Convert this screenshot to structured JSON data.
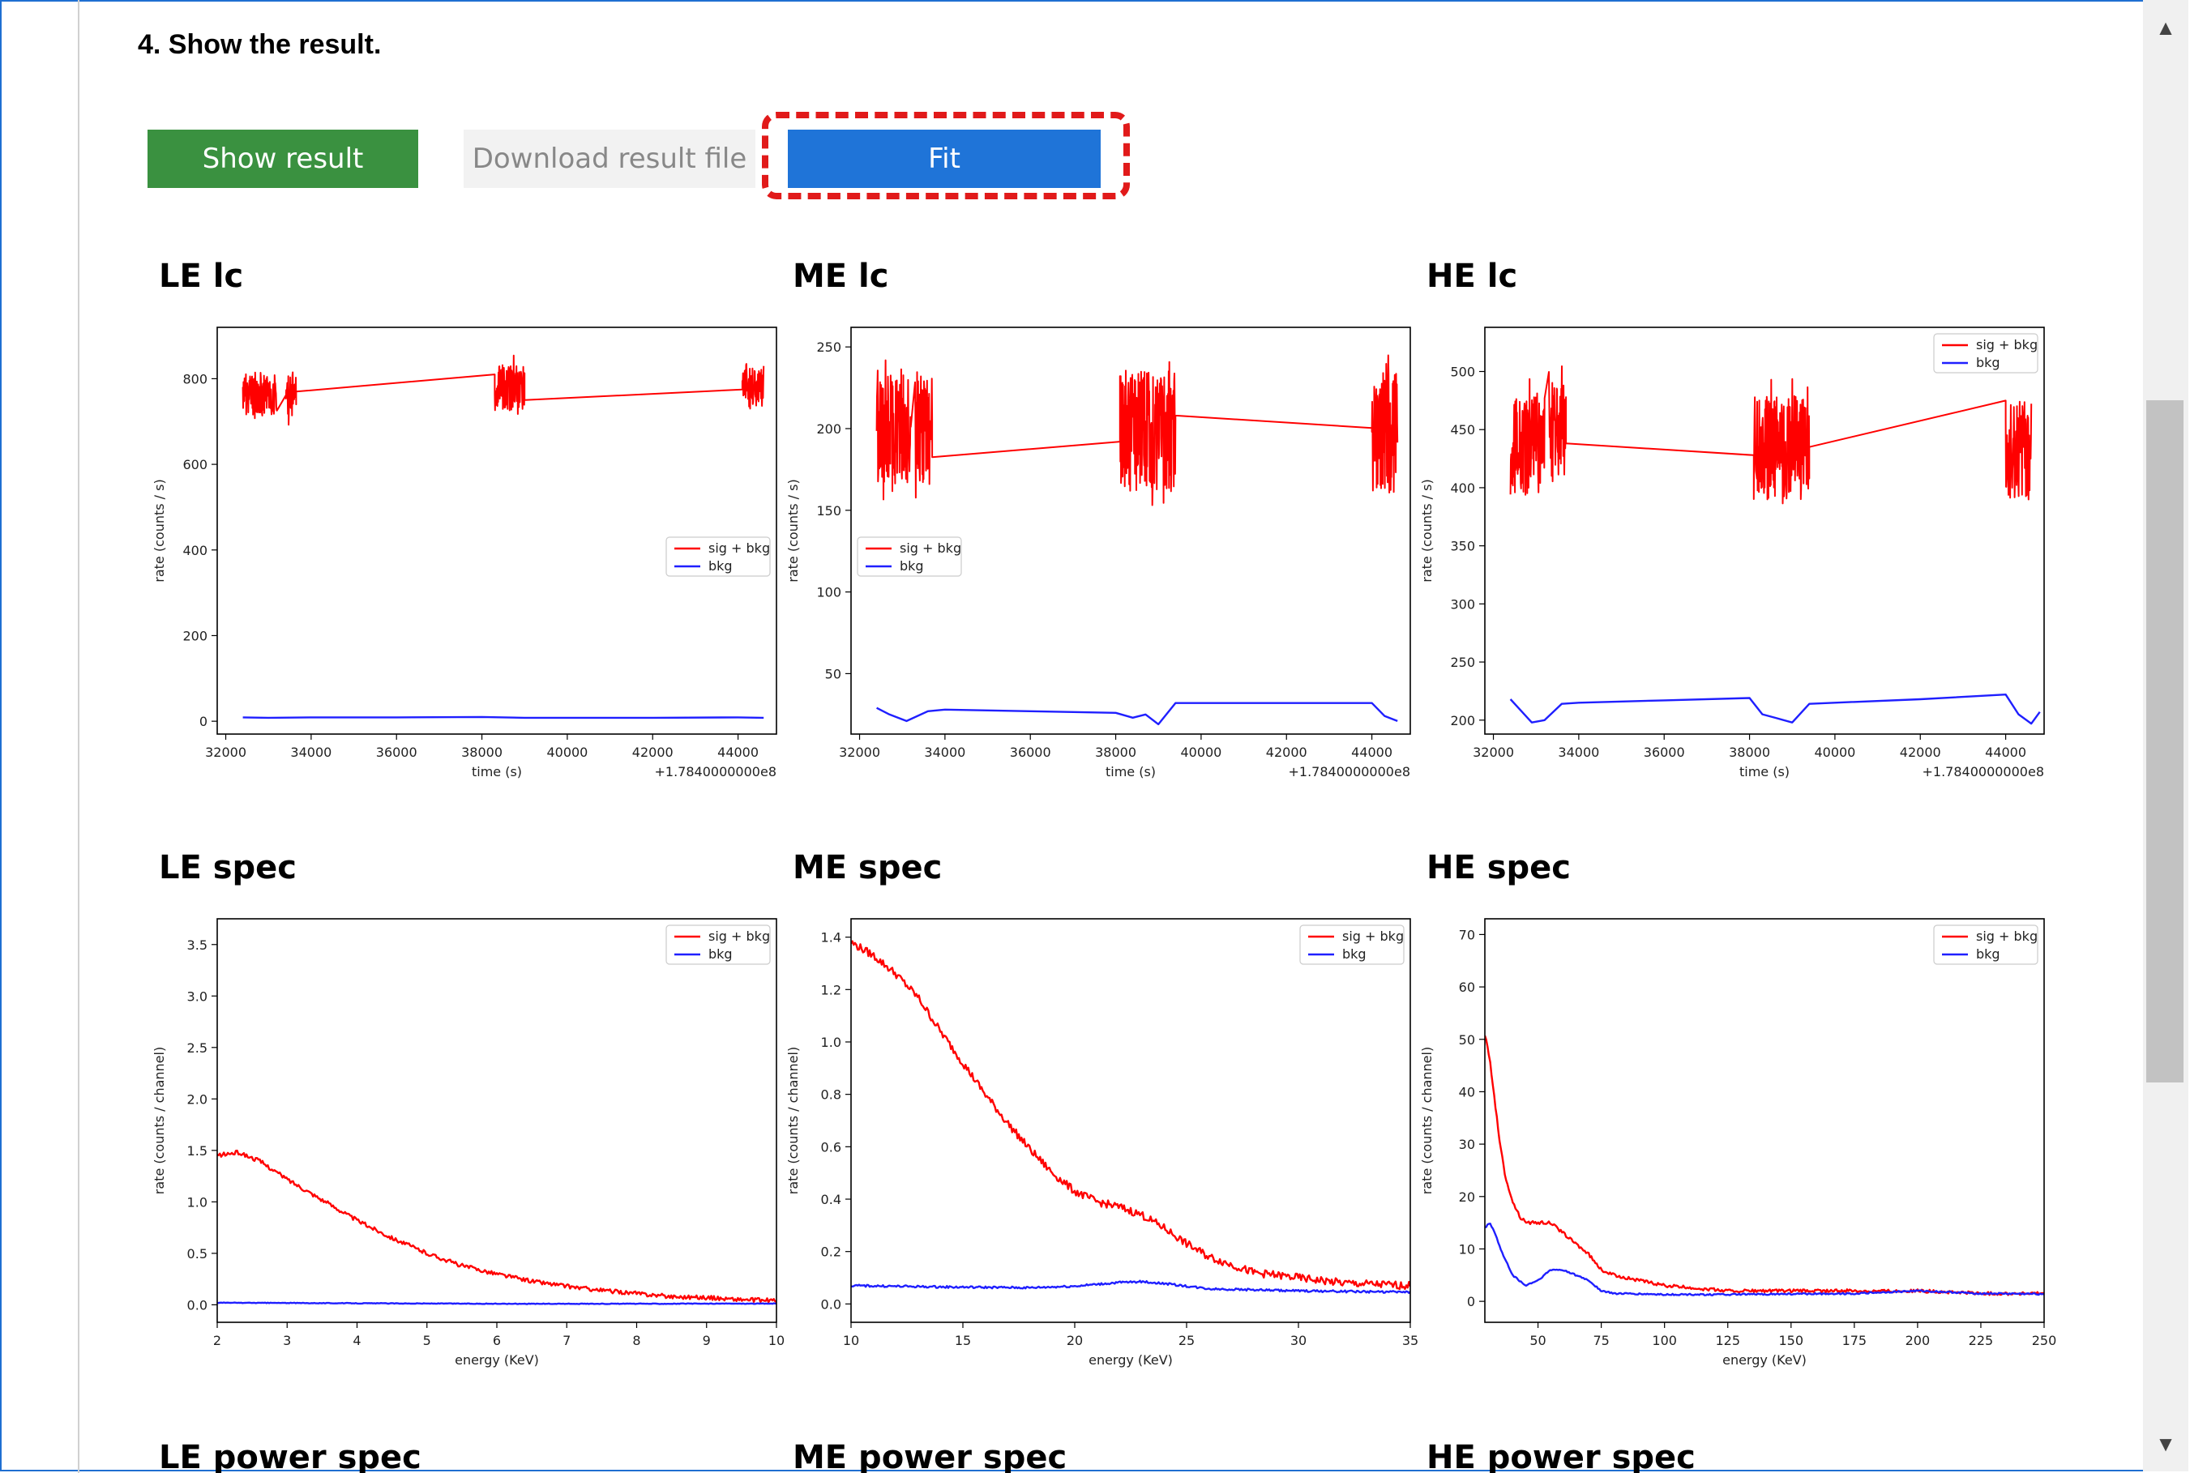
{
  "step": {
    "title": "4. Show the result."
  },
  "buttons": {
    "show_result": "Show result",
    "download": "Download result file",
    "fit": "Fit"
  },
  "colors": {
    "sig": "#ff0000",
    "bkg": "#1f1fff",
    "show_btn": "#3a9140",
    "fit_btn": "#1f74d8",
    "highlight": "#e11a1a"
  },
  "charts": [
    {
      "title": "LE lc",
      "chart_data": {
        "type": "line",
        "xlabel": "time (s)",
        "ylabel": "rate (counts / s)",
        "offset": "+1.7840000000e8",
        "xlim": [
          31800,
          44900
        ],
        "ylim": [
          -30,
          920
        ],
        "xticks": [
          32000,
          34000,
          36000,
          38000,
          40000,
          42000,
          44000
        ],
        "yticks": [
          0,
          200,
          400,
          600,
          800
        ],
        "legend_loc": "center-right",
        "series": [
          {
            "name": "sig + bkg",
            "color": "#ff0000",
            "kind": "lc",
            "clusters": [
              [
                32400,
                33200,
                690,
                840
              ],
              [
                33400,
                33650,
                690,
                830
              ],
              [
                38300,
                39000,
                700,
                860
              ],
              [
                44100,
                44600,
                700,
                860
              ]
            ],
            "links": [
              [
                33650,
                740
              ],
              [
                38300,
                810
              ],
              [
                39000,
                750
              ],
              [
                44100,
                795
              ]
            ]
          },
          {
            "name": "bkg",
            "color": "#1f1fff",
            "kind": "line",
            "x": [
              32400,
              33000,
              34000,
              36000,
              38000,
              39000,
              40000,
              42000,
              44000,
              44600
            ],
            "y": [
              9,
              8,
              9,
              9,
              10,
              8,
              8,
              8,
              9,
              8
            ]
          }
        ]
      }
    },
    {
      "title": "ME lc",
      "chart_data": {
        "type": "line",
        "xlabel": "time (s)",
        "ylabel": "rate (counts / s)",
        "offset": "+1.7840000000e8",
        "xlim": [
          31800,
          44900
        ],
        "ylim": [
          13,
          262
        ],
        "xticks": [
          32000,
          34000,
          36000,
          38000,
          40000,
          42000,
          44000
        ],
        "yticks": [
          50,
          100,
          150,
          200,
          250
        ],
        "legend_loc": "center-left",
        "series": [
          {
            "name": "sig + bkg",
            "color": "#ff0000",
            "kind": "lc",
            "clusters": [
              [
                32400,
                33200,
                150,
                252
              ],
              [
                33300,
                33700,
                150,
                252
              ],
              [
                38100,
                39400,
                145,
                252
              ],
              [
                44000,
                44600,
                145,
                250
              ]
            ],
            "links": [
              [
                33700,
                205
              ],
              [
                38100,
                192
              ],
              [
                39400,
                208
              ],
              [
                44000,
                198
              ]
            ]
          },
          {
            "name": "bkg",
            "color": "#1f1fff",
            "kind": "line",
            "x": [
              32400,
              32700,
              33100,
              33600,
              34000,
              36000,
              38000,
              38400,
              38700,
              39000,
              39400,
              40000,
              42000,
              44000,
              44300,
              44600
            ],
            "y": [
              29,
              25,
              21,
              27,
              28,
              27,
              26,
              23,
              25,
              19,
              32,
              32,
              32,
              32,
              24,
              21
            ]
          }
        ]
      }
    },
    {
      "title": "HE lc",
      "chart_data": {
        "type": "line",
        "xlabel": "time (s)",
        "ylabel": "rate (counts / s)",
        "offset": "+1.7840000000e8",
        "xlim": [
          31800,
          44900
        ],
        "ylim": [
          188,
          538
        ],
        "xticks": [
          32000,
          34000,
          36000,
          38000,
          40000,
          42000,
          44000
        ],
        "yticks": [
          200,
          250,
          300,
          350,
          400,
          450,
          500
        ],
        "legend_loc": "upper-right",
        "series": [
          {
            "name": "sig + bkg",
            "color": "#ff0000",
            "kind": "lc",
            "clusters": [
              [
                32400,
                33200,
                375,
                500
              ],
              [
                33300,
                33700,
                380,
                525
              ],
              [
                38100,
                39400,
                370,
                500
              ],
              [
                44000,
                44600,
                365,
                495
              ]
            ],
            "links": [
              [
                33700,
                478
              ],
              [
                38100,
                428
              ],
              [
                39400,
                435
              ],
              [
                44000,
                458
              ]
            ]
          },
          {
            "name": "bkg",
            "color": "#1f1fff",
            "kind": "line",
            "x": [
              32400,
              32600,
              32900,
              33200,
              33600,
              34000,
              36000,
              38000,
              38300,
              38600,
              39000,
              39400,
              40000,
              42000,
              44000,
              44300,
              44600,
              44800
            ],
            "y": [
              218,
              210,
              198,
              200,
              214,
              215,
              217,
              219,
              205,
              202,
              198,
              214,
              215,
              218,
              222,
              205,
              197,
              207
            ]
          }
        ]
      }
    },
    {
      "title": "LE spec",
      "chart_data": {
        "type": "line",
        "xlabel": "energy (KeV)",
        "ylabel": "rate (counts / channel)",
        "xlim": [
          2,
          10
        ],
        "ylim": [
          -0.17,
          3.75
        ],
        "xticks": [
          2,
          3,
          4,
          5,
          6,
          7,
          8,
          9,
          10
        ],
        "yticks": [
          0.0,
          0.5,
          1.0,
          1.5,
          2.0,
          2.5,
          3.0,
          3.5
        ],
        "ytick_labels": [
          "0.0",
          "0.5",
          "1.0",
          "1.5",
          "2.0",
          "2.5",
          "3.0",
          "3.5"
        ],
        "legend_loc": "upper-right",
        "series": [
          {
            "name": "sig + bkg",
            "color": "#ff0000",
            "kind": "noisy",
            "x": [
              2,
              2.3,
              2.6,
              3,
              3.5,
              4,
              4.5,
              5,
              5.5,
              6,
              6.5,
              7,
              7.5,
              8,
              8.5,
              9,
              9.5,
              10
            ],
            "y": [
              1.45,
              1.48,
              1.4,
              1.22,
              1.02,
              0.82,
              0.65,
              0.5,
              0.38,
              0.3,
              0.23,
              0.18,
              0.14,
              0.11,
              0.08,
              0.07,
              0.05,
              0.04
            ],
            "noise": 0.02
          },
          {
            "name": "bkg",
            "color": "#1f1fff",
            "kind": "noisy",
            "x": [
              2,
              4,
              6,
              8,
              10
            ],
            "y": [
              0.02,
              0.015,
              0.01,
              0.01,
              0.012
            ],
            "noise": 0.003
          }
        ]
      }
    },
    {
      "title": "ME spec",
      "chart_data": {
        "type": "line",
        "xlabel": "energy (KeV)",
        "ylabel": "rate (counts / channel)",
        "xlim": [
          10,
          35
        ],
        "ylim": [
          -0.07,
          1.47
        ],
        "xticks": [
          10,
          15,
          20,
          25,
          30,
          35
        ],
        "yticks": [
          0.0,
          0.2,
          0.4,
          0.6,
          0.8,
          1.0,
          1.2,
          1.4
        ],
        "ytick_labels": [
          "0.0",
          "0.2",
          "0.4",
          "0.6",
          "0.8",
          "1.0",
          "1.2",
          "1.4"
        ],
        "legend_loc": "upper-right",
        "series": [
          {
            "name": "sig + bkg",
            "color": "#ff0000",
            "kind": "noisy",
            "x": [
              10,
              11,
              12,
              13,
              14,
              15,
              16,
              17,
              18,
              19,
              20,
              21,
              22,
              23,
              24,
              25,
              26,
              27,
              28,
              30,
              32,
              35
            ],
            "y": [
              1.38,
              1.33,
              1.26,
              1.17,
              1.04,
              0.92,
              0.8,
              0.69,
              0.59,
              0.5,
              0.43,
              0.39,
              0.37,
              0.34,
              0.29,
              0.23,
              0.18,
              0.15,
              0.12,
              0.1,
              0.08,
              0.07
            ],
            "noise": 0.015
          },
          {
            "name": "bkg",
            "color": "#1f1fff",
            "kind": "noisy",
            "x": [
              10,
              14,
              18,
              20,
              22,
              23,
              24,
              26,
              30,
              35
            ],
            "y": [
              0.07,
              0.065,
              0.062,
              0.068,
              0.082,
              0.085,
              0.078,
              0.058,
              0.05,
              0.045
            ],
            "noise": 0.004
          }
        ]
      }
    },
    {
      "title": "HE spec",
      "chart_data": {
        "type": "line",
        "xlabel": "energy (KeV)",
        "ylabel": "rate (counts / channel)",
        "xlim": [
          29,
          250
        ],
        "ylim": [
          -4,
          73
        ],
        "xticks": [
          50,
          75,
          100,
          125,
          150,
          175,
          200,
          225,
          250
        ],
        "yticks": [
          0,
          10,
          20,
          30,
          40,
          50,
          60,
          70
        ],
        "legend_loc": "upper-right",
        "series": [
          {
            "name": "sig + bkg",
            "color": "#ff0000",
            "kind": "noisy",
            "x": [
              29,
              31,
              33,
              35,
              37,
              40,
              43,
              46,
              50,
              55,
              60,
              65,
              70,
              75,
              80,
              90,
              100,
              125,
              150,
              175,
              200,
              225,
              250
            ],
            "y": [
              51,
              46,
              38,
              30,
              24,
              19,
              16,
              15,
              15,
              15,
              13,
              11,
              9,
              6,
              5,
              4,
              3,
              2,
              2,
              2,
              2,
              1.5,
              1.5
            ],
            "noise": 0.3
          },
          {
            "name": "bkg",
            "color": "#1f1fff",
            "kind": "noisy",
            "x": [
              29,
              31,
              33,
              36,
              40,
              45,
              50,
              55,
              60,
              65,
              70,
              75,
              80,
              100,
              125,
              150,
              175,
              200,
              225,
              250
            ],
            "y": [
              14,
              15,
              13,
              9,
              5,
              3,
              4,
              6,
              6,
              5,
              4,
              2,
              1.5,
              1.3,
              1.3,
              1.4,
              1.5,
              2,
              1.5,
              1.4
            ],
            "noise": 0.15
          }
        ]
      }
    },
    {
      "title": "LE power spec"
    },
    {
      "title": "ME power spec"
    },
    {
      "title": "HE power spec"
    }
  ]
}
